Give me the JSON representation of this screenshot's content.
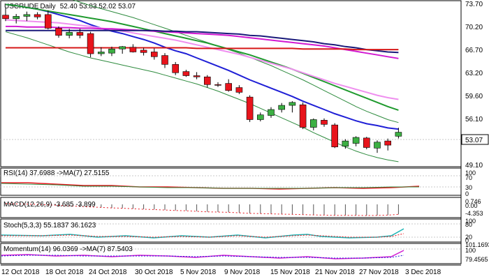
{
  "header": {
    "symbol": "USCRUDE",
    "timeframe": "Daily",
    "ohlc": "52.40 53.83 52.02 53.07"
  },
  "colors": {
    "up_candle": "#3cb043",
    "down_candle": "#e8141c",
    "blue_ma": "#1f1fd6",
    "green_ma": "#1f9a2e",
    "magenta_ma": "#d21ad2",
    "pink_ma": "#ef8fef",
    "navy_ma": "#1a1a7a",
    "red_ma": "#d61818",
    "band": "#2e8b3e",
    "price_tag_bg": "#ffffff"
  },
  "price_axis": {
    "ticks": [
      "73.70",
      "70.20",
      "66.70",
      "63.20",
      "59.60",
      "56.10",
      "49.10"
    ],
    "last_price_label": "53.07"
  },
  "panels": {
    "rsi": {
      "label": "RSI(14) 37.6988 ->MA(7) 27.5155",
      "ticks": [
        "100",
        "70",
        "30",
        "0"
      ]
    },
    "macd": {
      "label": "MACD(12,26,9) -3.685 -3.899",
      "ticks": [
        "0.746",
        "0.00",
        "-4.353"
      ]
    },
    "stoch": {
      "label": "Stoch(5,3,3) 55.1837 36.1623",
      "ticks": [
        "100",
        "80",
        "20",
        "0"
      ]
    },
    "momentum": {
      "label": "Momentum(14) 96.0369 ->MA(7) 87.5403",
      "ticks": [
        "101.1693",
        "100",
        "79.4565"
      ]
    }
  },
  "date_axis": [
    "12 Oct 2018",
    "18 Oct 2018",
    "24 Oct 2018",
    "30 Oct 2018",
    "5 Nov 2018",
    "9 Nov 2018",
    "15 Nov 2018",
    "21 Nov 2018",
    "27 Nov 2018",
    "3 Dec 2018"
  ],
  "chart_data": {
    "type": "candlestick",
    "series_ohlc": [
      {
        "o": 72.8,
        "h": 74.0,
        "l": 71.8,
        "c": 72.2
      },
      {
        "o": 72.2,
        "h": 73.0,
        "l": 71.4,
        "c": 72.6
      },
      {
        "o": 72.6,
        "h": 73.4,
        "l": 71.8,
        "c": 72.9
      },
      {
        "o": 72.9,
        "h": 73.3,
        "l": 72.1,
        "c": 72.5
      },
      {
        "o": 72.9,
        "h": 73.6,
        "l": 70.4,
        "c": 70.6
      },
      {
        "o": 70.6,
        "h": 70.9,
        "l": 69.0,
        "c": 69.4
      },
      {
        "o": 69.4,
        "h": 70.5,
        "l": 68.9,
        "c": 69.9
      },
      {
        "o": 69.9,
        "h": 70.5,
        "l": 68.9,
        "c": 69.4
      },
      {
        "o": 69.7,
        "h": 70.0,
        "l": 65.7,
        "c": 66.3
      },
      {
        "o": 66.3,
        "h": 67.4,
        "l": 65.9,
        "c": 66.6
      },
      {
        "o": 66.4,
        "h": 67.5,
        "l": 65.9,
        "c": 67.1
      },
      {
        "o": 67.1,
        "h": 67.6,
        "l": 66.3,
        "c": 67.5
      },
      {
        "o": 67.4,
        "h": 67.9,
        "l": 66.5,
        "c": 66.6
      },
      {
        "o": 66.9,
        "h": 67.3,
        "l": 66.0,
        "c": 66.5
      },
      {
        "o": 66.6,
        "h": 67.2,
        "l": 65.3,
        "c": 65.8
      },
      {
        "o": 66.0,
        "h": 66.4,
        "l": 63.9,
        "c": 64.5
      },
      {
        "o": 64.5,
        "h": 64.9,
        "l": 62.7,
        "c": 63.1
      },
      {
        "o": 63.3,
        "h": 63.6,
        "l": 62.4,
        "c": 62.6
      },
      {
        "o": 62.6,
        "h": 63.2,
        "l": 62.0,
        "c": 62.4
      },
      {
        "o": 62.4,
        "h": 62.7,
        "l": 60.6,
        "c": 61.1
      },
      {
        "o": 61.1,
        "h": 61.5,
        "l": 60.7,
        "c": 61.0
      },
      {
        "o": 61.3,
        "h": 62.0,
        "l": 59.9,
        "c": 60.1
      },
      {
        "o": 60.6,
        "h": 61.0,
        "l": 59.5,
        "c": 59.8
      },
      {
        "o": 59.0,
        "h": 59.3,
        "l": 54.8,
        "c": 55.2
      },
      {
        "o": 55.2,
        "h": 56.4,
        "l": 54.9,
        "c": 56.0
      },
      {
        "o": 55.9,
        "h": 57.3,
        "l": 55.5,
        "c": 56.9
      },
      {
        "o": 56.9,
        "h": 58.0,
        "l": 56.4,
        "c": 57.6
      },
      {
        "o": 57.6,
        "h": 58.3,
        "l": 56.4,
        "c": 58.1
      },
      {
        "o": 57.7,
        "h": 58.1,
        "l": 53.6,
        "c": 53.9
      },
      {
        "o": 53.9,
        "h": 55.4,
        "l": 53.4,
        "c": 55.2
      },
      {
        "o": 55.1,
        "h": 55.4,
        "l": 54.0,
        "c": 54.4
      },
      {
        "o": 54.3,
        "h": 54.6,
        "l": 50.4,
        "c": 50.6
      },
      {
        "o": 50.7,
        "h": 51.9,
        "l": 50.3,
        "c": 51.6
      },
      {
        "o": 51.2,
        "h": 52.4,
        "l": 50.7,
        "c": 52.2
      },
      {
        "o": 52.1,
        "h": 52.3,
        "l": 50.2,
        "c": 50.5
      },
      {
        "o": 50.4,
        "h": 51.7,
        "l": 49.6,
        "c": 51.4
      },
      {
        "o": 51.6,
        "h": 52.0,
        "l": 50.0,
        "c": 50.9
      },
      {
        "o": 52.4,
        "h": 53.83,
        "l": 52.02,
        "c": 53.07
      }
    ],
    "ma_lines": [
      {
        "color_key": "blue_ma",
        "values": [
          74.6,
          74.4,
          74.1,
          73.8,
          73.4,
          72.9,
          72.4,
          71.9,
          71.2,
          70.6,
          70.1,
          69.7,
          69.2,
          68.7,
          68.1,
          67.4,
          66.8,
          66.3,
          65.6,
          64.9,
          64.2,
          63.5,
          62.7,
          61.9,
          61.2,
          60.5,
          59.8,
          59.1,
          58.3,
          57.6,
          56.9,
          56.2,
          55.6,
          55.0,
          54.5,
          54.2,
          53.8,
          53.6
        ]
      },
      {
        "color_key": "green_ma",
        "values": [
          74.6,
          74.4,
          74.1,
          73.8,
          73.5,
          73.2,
          72.9,
          72.6,
          72.3,
          72.0,
          71.7,
          71.3,
          70.9,
          70.5,
          70.1,
          69.7,
          69.3,
          68.9,
          68.5,
          68.1,
          67.6,
          67.1,
          66.6,
          66.1,
          65.5,
          64.9,
          64.3,
          63.7,
          63.0,
          62.3,
          61.6,
          60.9,
          60.2,
          59.5,
          58.8,
          58.1,
          57.4,
          56.8
        ]
      },
      {
        "color_key": "pink_ma",
        "values": [
          72.0,
          71.9,
          71.8,
          71.7,
          71.6,
          71.5,
          71.3,
          71.1,
          70.9,
          70.6,
          70.4,
          70.1,
          69.8,
          69.5,
          69.2,
          68.9,
          68.6,
          68.2,
          67.8,
          67.4,
          67.0,
          66.6,
          66.2,
          65.7,
          65.2,
          64.7,
          64.2,
          63.7,
          63.1,
          62.5,
          61.9,
          61.3,
          60.8,
          60.3,
          59.8,
          59.3,
          58.9,
          58.6
        ]
      },
      {
        "color_key": "magenta_ma",
        "values": [
          70.9,
          70.9,
          70.8,
          70.8,
          70.8,
          70.7,
          70.7,
          70.6,
          70.6,
          70.5,
          70.5,
          70.4,
          70.3,
          70.2,
          70.1,
          70.0,
          69.9,
          69.8,
          69.7,
          69.6,
          69.5,
          69.4,
          69.2,
          69.0,
          68.8,
          68.6,
          68.4,
          68.2,
          68.0,
          67.8,
          67.6,
          67.3,
          67.0,
          66.7,
          66.4,
          66.1,
          65.8,
          65.5
        ]
      },
      {
        "color_key": "navy_ma",
        "values": [
          70.2,
          70.2,
          70.2,
          70.2,
          70.2,
          70.2,
          70.2,
          70.2,
          70.2,
          70.2,
          70.2,
          70.2,
          70.2,
          70.2,
          70.2,
          70.1,
          70.1,
          70.0,
          70.0,
          69.9,
          69.8,
          69.7,
          69.6,
          69.4,
          69.3,
          69.1,
          68.9,
          68.7,
          68.5,
          68.3,
          68.0,
          67.8,
          67.5,
          67.3,
          67.0,
          66.8,
          66.6,
          66.5
        ]
      },
      {
        "color_key": "red_ma",
        "values": [
          67.3,
          67.3,
          67.3,
          67.3,
          67.3,
          67.3,
          67.3,
          67.3,
          67.3,
          67.3,
          67.3,
          67.3,
          67.3,
          67.3,
          67.3,
          67.3,
          67.3,
          67.3,
          67.2,
          67.2,
          67.2,
          67.2,
          67.2,
          67.2,
          67.2,
          67.2,
          67.2,
          67.2,
          67.1,
          67.1,
          67.1,
          67.1,
          67.1,
          67.0,
          67.0,
          67.0,
          67.0,
          67.0
        ]
      }
    ],
    "band_upper": [
      79.0,
      78.5,
      78.0,
      77.4,
      76.8,
      76.2,
      75.6,
      75.0,
      74.4,
      73.9,
      73.4,
      72.9,
      72.4,
      71.8,
      71.2,
      70.6,
      70.0,
      69.4,
      68.8,
      68.2,
      67.6,
      67.0,
      66.4,
      65.7,
      65.0,
      64.3,
      63.5,
      62.7,
      61.9,
      61.0,
      60.1,
      59.2,
      58.3,
      57.4,
      56.6,
      55.9,
      55.2,
      54.7
    ],
    "band_lower": [
      70.0,
      69.5,
      69.0,
      68.4,
      67.8,
      67.2,
      66.6,
      66.1,
      65.6,
      65.2,
      64.8,
      64.4,
      64.0,
      63.6,
      63.2,
      62.7,
      62.2,
      61.7,
      61.2,
      60.6,
      60.0,
      59.3,
      58.6,
      57.9,
      57.1,
      56.3,
      55.5,
      54.7,
      53.9,
      53.0,
      52.2,
      51.4,
      50.6,
      49.9,
      49.3,
      48.8,
      48.4,
      48.1
    ],
    "ylim": [
      47.5,
      75.0
    ],
    "x_labels": [
      "12 Oct 2018",
      "18 Oct 2018",
      "24 Oct 2018",
      "30 Oct 2018",
      "5 Nov 2018",
      "9 Nov 2018",
      "15 Nov 2018",
      "21 Nov 2018",
      "27 Nov 2018",
      "3 Dec 2018"
    ],
    "last_price": 53.07
  }
}
